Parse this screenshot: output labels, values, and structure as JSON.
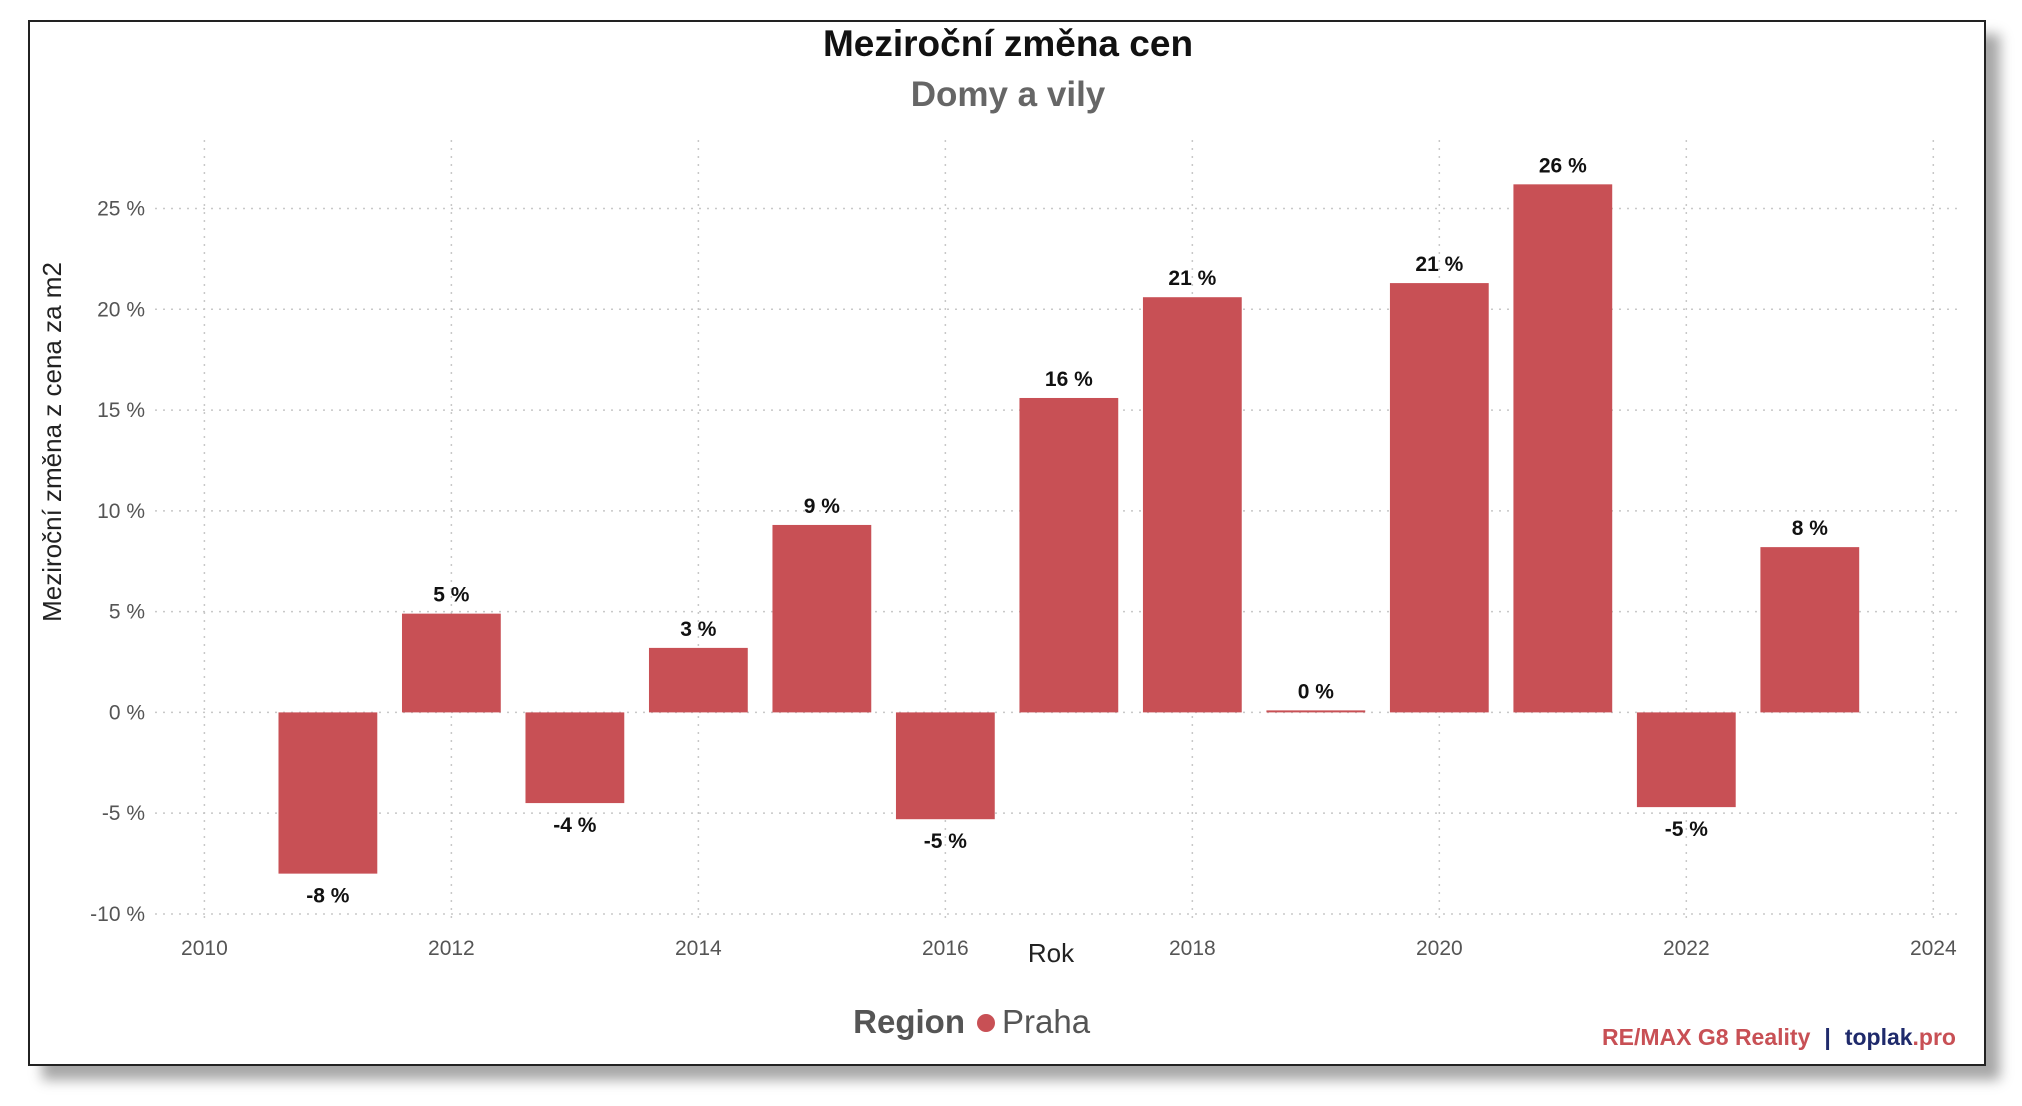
{
  "chart_data": {
    "type": "bar",
    "title": "Meziroční změna cen",
    "subtitle": "Domy a vily",
    "xlabel": "Rok",
    "ylabel": "Meziroční změna z cena za m2",
    "x": [
      2011,
      2012,
      2013,
      2014,
      2015,
      2016,
      2017,
      2018,
      2019,
      2020,
      2021,
      2022,
      2023
    ],
    "series": [
      {
        "name": "Praha",
        "color": "#c85055",
        "values": [
          -8.0,
          4.9,
          -4.5,
          3.2,
          9.3,
          -5.3,
          15.6,
          20.6,
          0.1,
          21.3,
          26.2,
          -4.7,
          8.2
        ],
        "labels": [
          "-8 %",
          "5 %",
          "-4 %",
          "3 %",
          "9 %",
          "-5 %",
          "16 %",
          "21 %",
          "0 %",
          "21 %",
          "26 %",
          "-5 %",
          "8 %"
        ]
      }
    ],
    "xlim": [
      2009.6,
      2024.2
    ],
    "ylim": [
      -10.4,
      28.4
    ],
    "x_ticks": [
      2010,
      2012,
      2014,
      2016,
      2018,
      2020,
      2022,
      2024
    ],
    "y_ticks": [
      -10,
      -5,
      0,
      5,
      10,
      15,
      20,
      25
    ],
    "y_tick_labels": [
      "-10 %",
      "-5 %",
      "0 %",
      "5 %",
      "10 %",
      "15 %",
      "20 %",
      "25 %"
    ],
    "grid": true,
    "legend_position": "bottom-center",
    "legend_title": "Region"
  },
  "credit": {
    "part1": "RE/MAX G8 Reality",
    "separator": "|",
    "part2": "toplak",
    "part3": ".pro",
    "colors": {
      "remax": "#c85055",
      "toplak": "#1f2a6b"
    }
  }
}
